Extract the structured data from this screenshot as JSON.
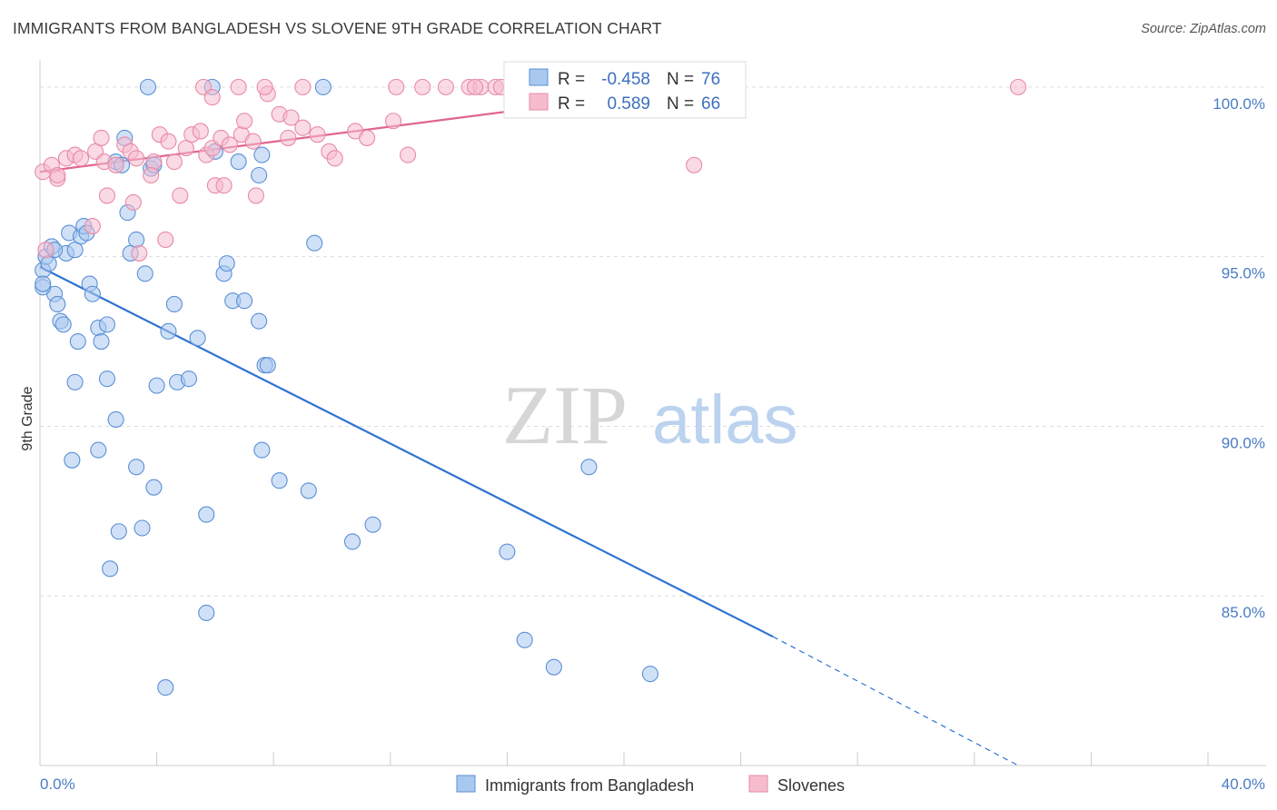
{
  "title": "IMMIGRANTS FROM BANGLADESH VS SLOVENE 9TH GRADE CORRELATION CHART",
  "source": "Source: ZipAtlas.com",
  "watermark": {
    "zip": "ZIP",
    "atlas": "atlas"
  },
  "colors": {
    "blue_fill": "#a9c8f0",
    "blue_stroke": "#5b8fd6",
    "blue_line": "#2f74d0",
    "pink_fill": "#f6bccd",
    "pink_stroke": "#e88aa7",
    "pink_line": "#e0648e",
    "tick_text": "#4a7cc4",
    "grid": "#dcdcdc"
  },
  "legend": {
    "r_label": "R =",
    "n_label": "N =",
    "rows": [
      {
        "series": "blue",
        "r": "-0.458",
        "n": "76"
      },
      {
        "series": "pink",
        "r": "0.589",
        "n": "66"
      }
    ]
  },
  "chart_data": {
    "type": "scatter",
    "title": "IMMIGRANTS FROM BANGLADESH VS SLOVENE 9TH GRADE CORRELATION CHART",
    "xlabel": "",
    "ylabel": "9th Grade",
    "xlim": [
      0,
      40
    ],
    "ylim": [
      80,
      100.8
    ],
    "x_tick_labels": [
      "0.0%",
      "40.0%"
    ],
    "y_ticks": [
      100,
      95,
      90,
      85
    ],
    "y_tick_labels": [
      "100.0%",
      "95.0%",
      "90.0%",
      "85.0%"
    ],
    "grid": true,
    "legend_position": "top-center",
    "series": [
      {
        "name": "Immigrants from Bangladesh",
        "color": "blue",
        "r": -0.458,
        "n": 76,
        "trend": {
          "x0": 0.0,
          "y0": 94.7,
          "x1": 25.1,
          "y1": 83.8,
          "dash_to_x": 33.5,
          "dash_to_y": 80.0
        },
        "points": [
          [
            0.1,
            94.6
          ],
          [
            0.2,
            95.0
          ],
          [
            0.4,
            95.3
          ],
          [
            0.5,
            93.9
          ],
          [
            0.6,
            93.6
          ],
          [
            0.7,
            93.1
          ],
          [
            0.9,
            95.1
          ],
          [
            0.1,
            94.1
          ],
          [
            0.3,
            94.8
          ],
          [
            1.0,
            95.7
          ],
          [
            1.2,
            95.2
          ],
          [
            1.4,
            95.6
          ],
          [
            1.5,
            95.9
          ],
          [
            1.7,
            94.2
          ],
          [
            1.8,
            93.9
          ],
          [
            2.0,
            92.9
          ],
          [
            2.1,
            92.5
          ],
          [
            2.3,
            93.0
          ],
          [
            1.3,
            92.5
          ],
          [
            1.2,
            91.3
          ],
          [
            2.3,
            91.4
          ],
          [
            2.6,
            90.2
          ],
          [
            2.0,
            89.3
          ],
          [
            1.1,
            89.0
          ],
          [
            3.3,
            88.8
          ],
          [
            3.9,
            88.2
          ],
          [
            2.7,
            86.9
          ],
          [
            3.5,
            87.0
          ],
          [
            2.4,
            85.8
          ],
          [
            4.3,
            82.3
          ],
          [
            5.7,
            84.5
          ],
          [
            5.7,
            87.4
          ],
          [
            3.1,
            95.1
          ],
          [
            3.3,
            95.5
          ],
          [
            3.6,
            94.5
          ],
          [
            3.8,
            97.6
          ],
          [
            2.6,
            97.8
          ],
          [
            2.8,
            97.7
          ],
          [
            2.9,
            98.5
          ],
          [
            3.9,
            97.7
          ],
          [
            4.4,
            92.8
          ],
          [
            4.0,
            91.2
          ],
          [
            4.7,
            91.3
          ],
          [
            5.1,
            91.4
          ],
          [
            4.6,
            93.6
          ],
          [
            5.4,
            92.6
          ],
          [
            6.3,
            94.5
          ],
          [
            6.4,
            94.8
          ],
          [
            6.6,
            93.7
          ],
          [
            7.0,
            93.7
          ],
          [
            7.5,
            93.1
          ],
          [
            7.7,
            91.8
          ],
          [
            7.8,
            91.8
          ],
          [
            6.8,
            97.8
          ],
          [
            7.5,
            97.4
          ],
          [
            7.6,
            98.0
          ],
          [
            6.0,
            98.1
          ],
          [
            5.9,
            100.0
          ],
          [
            3.7,
            100.0
          ],
          [
            9.7,
            100.0
          ],
          [
            7.6,
            89.3
          ],
          [
            8.2,
            88.4
          ],
          [
            9.2,
            88.1
          ],
          [
            10.7,
            86.6
          ],
          [
            11.4,
            87.1
          ],
          [
            16.0,
            86.3
          ],
          [
            18.8,
            88.8
          ],
          [
            16.6,
            83.7
          ],
          [
            17.6,
            82.9
          ],
          [
            20.9,
            82.7
          ],
          [
            9.4,
            95.4
          ],
          [
            1.6,
            95.7
          ],
          [
            0.1,
            94.2
          ],
          [
            0.5,
            95.2
          ],
          [
            3.0,
            96.3
          ],
          [
            0.8,
            93.0
          ]
        ]
      },
      {
        "name": "Slovenes",
        "color": "pink",
        "r": 0.589,
        "n": 66,
        "trend": {
          "x0": 0.0,
          "y0": 97.5,
          "x1": 22.5,
          "y1": 100.0
        },
        "points": [
          [
            0.1,
            97.5
          ],
          [
            0.4,
            97.7
          ],
          [
            0.6,
            97.3
          ],
          [
            0.6,
            97.4
          ],
          [
            0.9,
            97.9
          ],
          [
            1.2,
            98.0
          ],
          [
            1.4,
            97.9
          ],
          [
            1.9,
            98.1
          ],
          [
            2.2,
            97.8
          ],
          [
            2.3,
            96.8
          ],
          [
            2.1,
            98.5
          ],
          [
            2.6,
            97.7
          ],
          [
            2.9,
            98.3
          ],
          [
            3.1,
            98.1
          ],
          [
            3.3,
            97.9
          ],
          [
            3.2,
            96.6
          ],
          [
            3.9,
            97.8
          ],
          [
            3.8,
            97.4
          ],
          [
            4.1,
            98.6
          ],
          [
            4.4,
            98.4
          ],
          [
            4.6,
            97.8
          ],
          [
            4.8,
            96.8
          ],
          [
            5.0,
            98.2
          ],
          [
            5.2,
            98.6
          ],
          [
            5.5,
            98.7
          ],
          [
            5.7,
            98.0
          ],
          [
            5.9,
            98.2
          ],
          [
            6.0,
            97.1
          ],
          [
            6.3,
            97.1
          ],
          [
            6.2,
            98.5
          ],
          [
            6.5,
            98.3
          ],
          [
            6.9,
            98.6
          ],
          [
            7.0,
            99.0
          ],
          [
            7.3,
            98.4
          ],
          [
            7.4,
            96.8
          ],
          [
            7.8,
            99.8
          ],
          [
            8.2,
            99.2
          ],
          [
            8.5,
            98.5
          ],
          [
            8.6,
            99.1
          ],
          [
            9.0,
            98.8
          ],
          [
            9.5,
            98.6
          ],
          [
            9.9,
            98.1
          ],
          [
            10.1,
            97.9
          ],
          [
            10.8,
            98.7
          ],
          [
            11.2,
            98.5
          ],
          [
            12.1,
            99.0
          ],
          [
            12.6,
            98.0
          ],
          [
            12.2,
            100.0
          ],
          [
            13.1,
            100.0
          ],
          [
            13.9,
            100.0
          ],
          [
            14.7,
            100.0
          ],
          [
            15.1,
            100.0
          ],
          [
            15.6,
            100.0
          ],
          [
            15.8,
            100.0
          ],
          [
            14.9,
            100.0
          ],
          [
            9.0,
            100.0
          ],
          [
            7.7,
            100.0
          ],
          [
            6.8,
            100.0
          ],
          [
            5.6,
            100.0
          ],
          [
            5.9,
            99.7
          ],
          [
            22.4,
            97.7
          ],
          [
            33.5,
            100.0
          ],
          [
            0.2,
            95.2
          ],
          [
            1.8,
            95.9
          ],
          [
            3.4,
            95.1
          ],
          [
            4.3,
            95.5
          ]
        ]
      }
    ]
  },
  "bottom_legend": [
    {
      "label": "Immigrants from Bangladesh",
      "series": "blue"
    },
    {
      "label": "Slovenes",
      "series": "pink"
    }
  ]
}
